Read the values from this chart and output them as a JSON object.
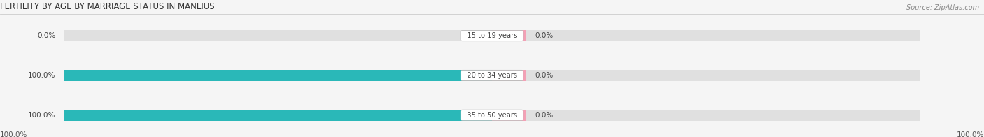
{
  "title": "FERTILITY BY AGE BY MARRIAGE STATUS IN MANLIUS",
  "source": "Source: ZipAtlas.com",
  "categories": [
    "15 to 19 years",
    "20 to 34 years",
    "35 to 50 years"
  ],
  "married_values": [
    0.0,
    100.0,
    100.0
  ],
  "unmarried_values": [
    0.0,
    0.0,
    0.0
  ],
  "married_color": "#2ab8b8",
  "unmarried_color": "#f4a0b5",
  "bar_bg_color": "#e0e0e0",
  "label_left_married": [
    "0.0%",
    "100.0%",
    "100.0%"
  ],
  "label_right_unmarried": [
    "0.0%",
    "0.0%",
    "0.0%"
  ],
  "bottom_left_label": "100.0%",
  "bottom_right_label": "100.0%",
  "title_fontsize": 8.5,
  "source_fontsize": 7,
  "background_color": "#f5f5f5",
  "fig_width": 14.06,
  "fig_height": 1.96,
  "max_val": 100.0,
  "unmarried_small_pct": 8.0
}
